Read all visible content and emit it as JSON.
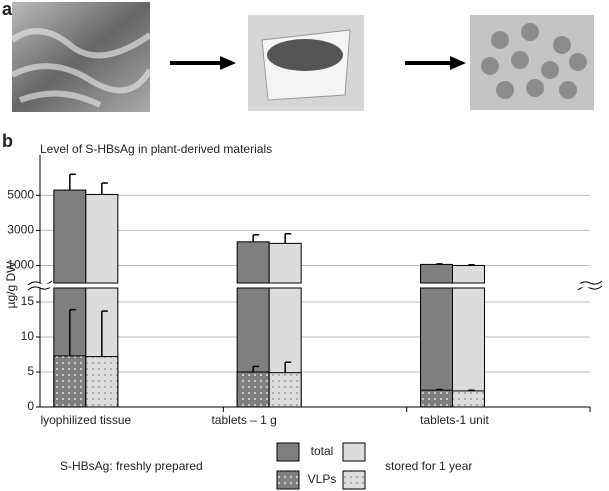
{
  "panel_labels": [
    "a",
    "b"
  ],
  "chart_data": {
    "type": "bar",
    "title": "Level of S-HBsAg in plant-derived materials",
    "y_label": "µg/g DW",
    "categories": [
      "lyophilized tissue",
      "tablets – 1 g",
      "tablets-1 unit"
    ],
    "measures": [
      "total",
      "VLPs"
    ],
    "groups": [
      {
        "name": "S-HBsAg: freshly prepared",
        "color": "#7f7f7f",
        "dot_color": "#ffffff",
        "total": [
          5300,
          2350,
          1060
        ],
        "total_err": [
          900,
          400,
          30
        ],
        "vlps": [
          7.3,
          5.0,
          2.4
        ],
        "vlps_err": [
          6.6,
          0.8,
          0.1
        ]
      },
      {
        "name": "stored for 1 year",
        "color": "#dcdcdc",
        "dot_color": "#8a8a8a",
        "total": [
          5050,
          2260,
          1000
        ],
        "total_err": [
          650,
          550,
          40
        ],
        "vlps": [
          7.2,
          4.9,
          2.3
        ],
        "vlps_err": [
          6.5,
          1.5,
          0.1
        ]
      }
    ],
    "ylim_upper": [
      0,
      7300
    ],
    "yticks_upper": [
      1000,
      3000,
      5000
    ],
    "ylim": [
      0,
      17
    ],
    "yticks": [
      0,
      5,
      10,
      15
    ],
    "grid": true
  }
}
